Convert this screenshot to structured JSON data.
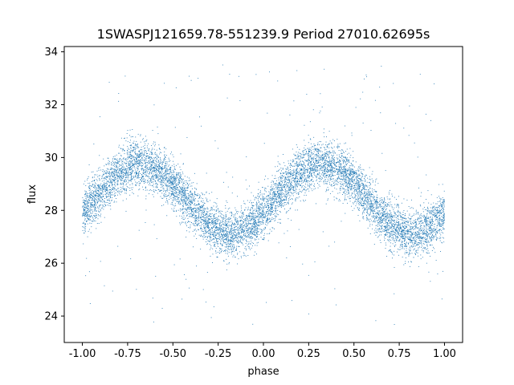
{
  "chart_data": {
    "type": "scatter",
    "title": "1SWASPJ121659.78-551239.9 Period 27010.62695s",
    "xlabel": "phase",
    "ylabel": "flux",
    "xlim": [
      -1.1,
      1.1
    ],
    "ylim": [
      23.0,
      34.2
    ],
    "xticks": [
      "-1.00",
      "-0.75",
      "-0.50",
      "-0.25",
      "0.00",
      "0.25",
      "0.50",
      "0.75",
      "1.00"
    ],
    "xtick_values": [
      -1.0,
      -0.75,
      -0.5,
      -0.25,
      0.0,
      0.25,
      0.5,
      0.75,
      1.0
    ],
    "yticks": [
      "24",
      "26",
      "28",
      "30",
      "32",
      "34"
    ],
    "ytick_values": [
      24,
      26,
      28,
      30,
      32,
      34
    ],
    "grid": false,
    "series": [
      {
        "color": "#1f77b4",
        "model": {
          "description": "sinusoidal folded light curve, two cycles over phase -1 to 1",
          "mean_flux": 28.45,
          "amplitude": 1.3,
          "max_phase": -0.68,
          "min_phase": -0.18,
          "scatter": 0.45
        },
        "x": [
          -1.0,
          -0.9,
          -0.8,
          -0.68,
          -0.6,
          -0.5,
          -0.4,
          -0.3,
          -0.18,
          -0.1,
          0.0,
          0.1,
          0.2,
          0.32,
          0.4,
          0.5,
          0.6,
          0.7,
          0.82,
          0.9,
          1.0
        ],
        "y": [
          28.1,
          28.9,
          29.5,
          29.75,
          29.6,
          29.0,
          28.3,
          27.6,
          27.15,
          27.4,
          28.1,
          28.9,
          29.5,
          29.75,
          29.6,
          29.0,
          28.3,
          27.6,
          27.15,
          27.4,
          28.1
        ]
      }
    ]
  }
}
